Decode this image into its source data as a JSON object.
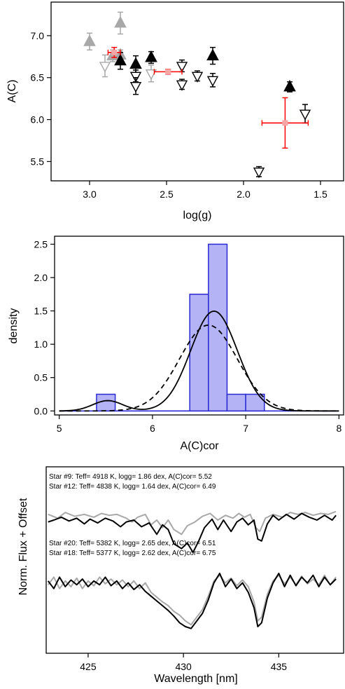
{
  "chart_data": [
    {
      "type": "scatter",
      "xlabel": "log(g)",
      "ylabel": "A(C)",
      "xlim": [
        3.25,
        1.35
      ],
      "ylim": [
        5.27,
        7.4
      ],
      "x_ticks": [
        3.0,
        2.5,
        2.0,
        1.5
      ],
      "x_tick_labels": [
        "3.0",
        "2.5",
        "2.0",
        "1.5"
      ],
      "y_ticks": [
        5.5,
        6.0,
        6.5,
        7.0
      ],
      "y_tick_labels": [
        "5.5",
        "6.0",
        "6.5",
        "7.0"
      ],
      "series": [
        {
          "marker": "filled-triangle-up",
          "color": "#a8a8a8",
          "points": [
            {
              "x": 3.0,
              "y": 6.93,
              "err": 0.1
            },
            {
              "x": 2.85,
              "y": 6.76,
              "err": 0.07
            },
            {
              "x": 2.8,
              "y": 7.15,
              "err": 0.13
            },
            {
              "x": 2.8,
              "y": 6.77,
              "err": 0.06
            }
          ]
        },
        {
          "marker": "filled-triangle-up",
          "color": "#000000",
          "points": [
            {
              "x": 2.8,
              "y": 6.7,
              "err": 0.1
            },
            {
              "x": 2.7,
              "y": 6.66,
              "err": 0.1
            },
            {
              "x": 2.6,
              "y": 6.74,
              "err": 0.07
            },
            {
              "x": 2.2,
              "y": 6.76,
              "err": 0.1
            },
            {
              "x": 1.7,
              "y": 6.39,
              "err": 0.06
            }
          ]
        },
        {
          "marker": "open-triangle-down",
          "color": "#a8a8a8",
          "points": [
            {
              "x": 2.9,
              "y": 6.64,
              "err": 0.13
            },
            {
              "x": 2.6,
              "y": 6.55,
              "err": 0.1
            }
          ]
        },
        {
          "marker": "open-triangle-down",
          "color": "#000000",
          "points": [
            {
              "x": 2.7,
              "y": 6.52,
              "err": 0.07
            },
            {
              "x": 2.7,
              "y": 6.4,
              "err": 0.1
            },
            {
              "x": 2.4,
              "y": 6.64,
              "err": 0.07
            },
            {
              "x": 2.4,
              "y": 6.42,
              "err": 0.06
            },
            {
              "x": 2.3,
              "y": 6.52,
              "err": 0.06
            },
            {
              "x": 2.2,
              "y": 6.47,
              "err": 0.08
            },
            {
              "x": 1.6,
              "y": 6.07,
              "err": 0.11
            },
            {
              "x": 1.9,
              "y": 5.38,
              "err": 0.06
            }
          ]
        },
        {
          "marker": "mean-cross",
          "color": "#ff0000",
          "points": [
            {
              "x": 2.84,
              "y": 6.8,
              "xerr": 0.04,
              "err": 0.06
            },
            {
              "x": 2.49,
              "y": 6.57,
              "xerr": 0.09,
              "err": 0.03
            },
            {
              "x": 1.73,
              "y": 5.96,
              "xerr": 0.15,
              "err": 0.3
            }
          ]
        }
      ]
    },
    {
      "type": "histogram",
      "xlabel": "A(C)cor",
      "ylabel": "density",
      "xlim": [
        4.95,
        8.05
      ],
      "ylim": [
        -0.06,
        2.62
      ],
      "x_ticks": [
        5,
        6,
        7,
        8
      ],
      "x_tick_labels": [
        "5",
        "6",
        "7",
        "8"
      ],
      "y_ticks": [
        0.0,
        0.5,
        1.0,
        1.5,
        2.0,
        2.5
      ],
      "y_tick_labels": [
        "0.0",
        "0.5",
        "1.0",
        "1.5",
        "2.0",
        "2.5"
      ],
      "bin_width": 0.2,
      "bins": [
        {
          "x0": 5.4,
          "density": 0.25
        },
        {
          "x0": 6.4,
          "density": 1.75
        },
        {
          "x0": 6.6,
          "density": 2.5
        },
        {
          "x0": 6.8,
          "density": 0.25
        },
        {
          "x0": 7.0,
          "density": 0.25
        }
      ],
      "bar_color": "#b3b3f5",
      "bar_edge_color": "#2a2ad4",
      "curves": [
        {
          "style": "solid",
          "components": [
            {
              "weight": 0.062,
              "mean": 5.52,
              "sd": 0.16
            },
            {
              "weight": 0.938,
              "mean": 6.66,
              "sd": 0.25
            }
          ]
        },
        {
          "style": "dashed",
          "components": [
            {
              "weight": 1.0,
              "mean": 6.6,
              "sd": 0.31
            }
          ]
        }
      ]
    },
    {
      "type": "line",
      "xlabel": "Wavelength [nm]",
      "ylabel": "Norm. Flux + Offset",
      "xlim": [
        422.8,
        438.4
      ],
      "x_ticks": [
        425,
        430,
        435
      ],
      "x_tick_labels": [
        "425",
        "430",
        "435"
      ],
      "annotations": [
        {
          "text": "Star #9: Teff= 4918 K, logg= 1.86 dex, A(C)cor= 5.52",
          "color": "#a8a8a8"
        },
        {
          "text": "Star #12: Teff= 4838 K, logg= 1.64 dex, A(C)cor= 6.49",
          "color": "#000000"
        },
        {
          "text": "Star #20: Teff= 5382 K, logg= 2.65 dex, A(C)cor= 6.51",
          "color": "#a8a8a8"
        },
        {
          "text": "Star #18: Teff= 5377 K, logg= 2.62 dex, A(C)cor= 6.75",
          "color": "#000000"
        }
      ],
      "series": [
        {
          "color": "#a8a8a8",
          "pairs": [
            [
              422.9,
              1.36
            ],
            [
              423.4,
              1.32
            ],
            [
              423.8,
              1.38
            ],
            [
              424.3,
              1.34
            ],
            [
              424.8,
              1.36
            ],
            [
              425.3,
              1.33
            ],
            [
              425.7,
              1.37
            ],
            [
              426.1,
              1.35
            ],
            [
              426.5,
              1.36
            ],
            [
              427.0,
              1.32
            ],
            [
              427.3,
              1.28
            ],
            [
              427.6,
              1.33
            ],
            [
              428.0,
              1.36
            ],
            [
              428.3,
              1.25
            ],
            [
              428.6,
              1.3
            ],
            [
              428.9,
              1.22
            ],
            [
              429.2,
              1.3
            ],
            [
              429.5,
              1.2
            ],
            [
              429.9,
              1.15
            ],
            [
              430.2,
              1.24
            ],
            [
              430.6,
              1.28
            ],
            [
              431.0,
              1.34
            ],
            [
              431.4,
              1.37
            ],
            [
              431.8,
              1.3
            ],
            [
              432.2,
              1.35
            ],
            [
              432.6,
              1.32
            ],
            [
              432.9,
              1.37
            ],
            [
              433.2,
              1.33
            ],
            [
              433.5,
              1.36
            ],
            [
              433.8,
              1.22
            ],
            [
              434.0,
              1.18
            ],
            [
              434.3,
              1.32
            ],
            [
              434.7,
              1.36
            ],
            [
              435.2,
              1.33
            ],
            [
              435.6,
              1.38
            ],
            [
              436.0,
              1.36
            ],
            [
              436.4,
              1.38
            ],
            [
              436.8,
              1.35
            ],
            [
              437.2,
              1.37
            ],
            [
              437.6,
              1.36
            ],
            [
              438.0,
              1.39
            ]
          ]
        },
        {
          "color": "#000000",
          "pairs": [
            [
              422.9,
              1.28
            ],
            [
              423.2,
              1.3
            ],
            [
              423.6,
              1.33
            ],
            [
              424.0,
              1.29
            ],
            [
              424.4,
              1.32
            ],
            [
              424.8,
              1.26
            ],
            [
              425.1,
              1.31
            ],
            [
              425.5,
              1.27
            ],
            [
              425.9,
              1.32
            ],
            [
              426.3,
              1.29
            ],
            [
              426.7,
              1.23
            ],
            [
              427.0,
              1.28
            ],
            [
              427.4,
              1.3
            ],
            [
              427.8,
              1.23
            ],
            [
              428.2,
              1.27
            ],
            [
              428.6,
              1.15
            ],
            [
              428.9,
              1.25
            ],
            [
              429.2,
              1.2
            ],
            [
              429.5,
              1.05
            ],
            [
              429.9,
              1.0
            ],
            [
              430.2,
              1.06
            ],
            [
              430.5,
              0.96
            ],
            [
              430.8,
              1.08
            ],
            [
              431.1,
              1.22
            ],
            [
              431.5,
              1.31
            ],
            [
              431.8,
              1.2
            ],
            [
              432.1,
              1.3
            ],
            [
              432.5,
              1.18
            ],
            [
              432.8,
              1.28
            ],
            [
              433.1,
              1.32
            ],
            [
              433.4,
              1.25
            ],
            [
              433.7,
              1.3
            ],
            [
              433.9,
              1.1
            ],
            [
              434.1,
              1.08
            ],
            [
              434.4,
              1.26
            ],
            [
              434.7,
              1.35
            ],
            [
              435.0,
              1.3
            ],
            [
              435.4,
              1.36
            ],
            [
              435.8,
              1.31
            ],
            [
              436.2,
              1.37
            ],
            [
              436.6,
              1.33
            ],
            [
              437.0,
              1.3
            ],
            [
              437.4,
              1.35
            ],
            [
              437.8,
              1.3
            ],
            [
              438.0,
              1.35
            ]
          ]
        },
        {
          "color": "#a8a8a8",
          "pairs": [
            [
              422.9,
              0.62
            ],
            [
              423.2,
              0.7
            ],
            [
              423.5,
              0.58
            ],
            [
              423.8,
              0.66
            ],
            [
              424.1,
              0.6
            ],
            [
              424.4,
              0.69
            ],
            [
              424.7,
              0.58
            ],
            [
              425.0,
              0.66
            ],
            [
              425.3,
              0.61
            ],
            [
              425.6,
              0.7
            ],
            [
              425.9,
              0.63
            ],
            [
              426.2,
              0.68
            ],
            [
              426.5,
              0.62
            ],
            [
              426.8,
              0.67
            ],
            [
              427.1,
              0.6
            ],
            [
              427.4,
              0.66
            ],
            [
              427.7,
              0.58
            ],
            [
              428.0,
              0.64
            ],
            [
              428.3,
              0.54
            ],
            [
              428.6,
              0.49
            ],
            [
              428.9,
              0.44
            ],
            [
              429.2,
              0.4
            ],
            [
              429.5,
              0.34
            ],
            [
              429.8,
              0.3
            ],
            [
              430.1,
              0.24
            ],
            [
              430.4,
              0.2
            ],
            [
              430.7,
              0.28
            ],
            [
              431.0,
              0.36
            ],
            [
              431.3,
              0.5
            ],
            [
              431.6,
              0.66
            ],
            [
              431.9,
              0.72
            ],
            [
              432.2,
              0.64
            ],
            [
              432.5,
              0.69
            ],
            [
              432.8,
              0.61
            ],
            [
              433.1,
              0.67
            ],
            [
              433.4,
              0.6
            ],
            [
              433.7,
              0.44
            ],
            [
              433.9,
              0.24
            ],
            [
              434.1,
              0.28
            ],
            [
              434.4,
              0.52
            ],
            [
              434.7,
              0.66
            ],
            [
              435.0,
              0.72
            ],
            [
              435.3,
              0.63
            ],
            [
              435.6,
              0.7
            ],
            [
              435.9,
              0.62
            ],
            [
              436.2,
              0.71
            ],
            [
              436.5,
              0.63
            ],
            [
              436.8,
              0.68
            ],
            [
              437.1,
              0.62
            ],
            [
              437.4,
              0.72
            ],
            [
              437.7,
              0.62
            ],
            [
              438.0,
              0.7
            ]
          ]
        },
        {
          "color": "#000000",
          "pairs": [
            [
              422.9,
              0.66
            ],
            [
              423.2,
              0.58
            ],
            [
              423.5,
              0.7
            ],
            [
              423.8,
              0.6
            ],
            [
              424.1,
              0.67
            ],
            [
              424.4,
              0.62
            ],
            [
              424.7,
              0.68
            ],
            [
              425.0,
              0.6
            ],
            [
              425.3,
              0.66
            ],
            [
              425.6,
              0.62
            ],
            [
              425.9,
              0.7
            ],
            [
              426.2,
              0.61
            ],
            [
              426.5,
              0.66
            ],
            [
              426.8,
              0.58
            ],
            [
              427.1,
              0.64
            ],
            [
              427.4,
              0.57
            ],
            [
              427.7,
              0.62
            ],
            [
              428.0,
              0.55
            ],
            [
              428.3,
              0.5
            ],
            [
              428.6,
              0.45
            ],
            [
              428.9,
              0.4
            ],
            [
              429.2,
              0.35
            ],
            [
              429.5,
              0.29
            ],
            [
              429.8,
              0.22
            ],
            [
              430.1,
              0.18
            ],
            [
              430.4,
              0.16
            ],
            [
              430.7,
              0.24
            ],
            [
              431.0,
              0.32
            ],
            [
              431.3,
              0.46
            ],
            [
              431.6,
              0.64
            ],
            [
              431.9,
              0.74
            ],
            [
              432.2,
              0.6
            ],
            [
              432.5,
              0.68
            ],
            [
              432.8,
              0.58
            ],
            [
              433.1,
              0.64
            ],
            [
              433.4,
              0.54
            ],
            [
              433.7,
              0.38
            ],
            [
              433.9,
              0.18
            ],
            [
              434.1,
              0.22
            ],
            [
              434.4,
              0.48
            ],
            [
              434.7,
              0.64
            ],
            [
              435.0,
              0.74
            ],
            [
              435.3,
              0.6
            ],
            [
              435.6,
              0.72
            ],
            [
              435.9,
              0.61
            ],
            [
              436.2,
              0.7
            ],
            [
              436.5,
              0.64
            ],
            [
              436.8,
              0.72
            ],
            [
              437.1,
              0.6
            ],
            [
              437.4,
              0.7
            ],
            [
              437.7,
              0.62
            ],
            [
              438.0,
              0.68
            ]
          ]
        }
      ]
    }
  ]
}
